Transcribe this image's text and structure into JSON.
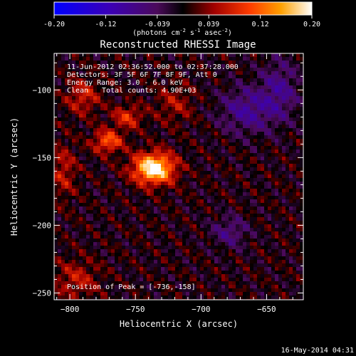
{
  "chart_data": {
    "type": "heatmap",
    "title": "Reconstructed RHESSI Image",
    "xlabel": "Heliocentric X (arcsec)",
    "ylabel": "Heliocentric Y (arcsec)",
    "xlim": [
      -812,
      -622
    ],
    "ylim": [
      -255,
      -73
    ],
    "xticks": [
      -800,
      -750,
      -700,
      -650
    ],
    "yticks": [
      -100,
      -150,
      -200,
      -250
    ],
    "colorbar": {
      "min": -0.2,
      "max": 0.2,
      "ticks": [
        "-0.20",
        "-0.12",
        "-0.039",
        "0.039",
        "0.12",
        "0.20"
      ],
      "unit_prefix": "(photons cm",
      "unit_exp1": "-2",
      "unit_mid": " s",
      "unit_exp2": "-1",
      "unit_mid2": " asec",
      "unit_exp3": "-2",
      "unit_suffix": ")"
    },
    "annotations": [
      "11-Jun-2012 02:36:52.000 to 02:37:28.000",
      "Detectors: 3F 5F 6F 7F 8F 9F, Att 0",
      "Energy Range: 3.0 - 6.0 keV",
      "Clean",
      "Total counts: 4.90E+03"
    ],
    "peak_label": "Position of Peak = [-736,-158]",
    "peak_position": [
      -736,
      -158
    ],
    "peak_value": 0.2,
    "sources": [
      {
        "x": -736,
        "y": -158,
        "sx": 11,
        "sy": 8,
        "amp": 0.21
      },
      {
        "x": -771,
        "y": -138,
        "sx": 8,
        "sy": 6,
        "amp": 0.11
      },
      {
        "x": -756,
        "y": -120,
        "sx": 8,
        "sy": 6,
        "amp": 0.08
      },
      {
        "x": -790,
        "y": -105,
        "sx": 9,
        "sy": 9,
        "amp": 0.07
      },
      {
        "x": -805,
        "y": -160,
        "sx": 7,
        "sy": 14,
        "amp": 0.06
      },
      {
        "x": -795,
        "y": -240,
        "sx": 12,
        "sy": 10,
        "amp": 0.06
      },
      {
        "x": -720,
        "y": -110,
        "sx": 10,
        "sy": 10,
        "amp": 0.05
      },
      {
        "x": -665,
        "y": -115,
        "sx": 14,
        "sy": 12,
        "amp": -0.08
      },
      {
        "x": -640,
        "y": -100,
        "sx": 10,
        "sy": 16,
        "amp": -0.07
      },
      {
        "x": -678,
        "y": -205,
        "sx": 10,
        "sy": 8,
        "amp": -0.06
      }
    ]
  },
  "footer_date": "16-May-2014 04:31"
}
